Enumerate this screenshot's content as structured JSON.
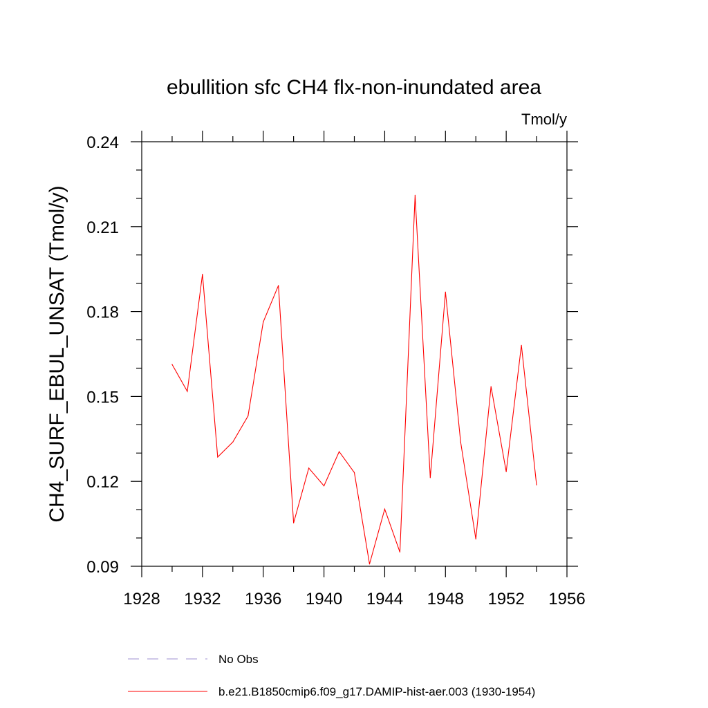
{
  "chart_data": {
    "type": "line",
    "title": "ebullition sfc CH4 flx-non-inundated area",
    "units": "Tmol/y",
    "ylabel": "CH4_SURF_EBUL_UNSAT  (Tmol/y)",
    "xlabel": "",
    "xlim": [
      1928,
      1956
    ],
    "ylim": [
      0.09,
      0.24
    ],
    "x_ticks": [
      "1928",
      "1932",
      "1936",
      "1940",
      "1944",
      "1948",
      "1952",
      "1956"
    ],
    "y_ticks": [
      "0.09",
      "0.12",
      "0.15",
      "0.18",
      "0.21",
      "0.24"
    ],
    "x_tick_values": [
      1928,
      1932,
      1936,
      1940,
      1944,
      1948,
      1952,
      1956
    ],
    "y_tick_values": [
      0.09,
      0.12,
      0.15,
      0.18,
      0.21,
      0.24
    ],
    "x_minor_step": 2,
    "y_minor_step": 0.01,
    "grid": false,
    "legend_position": "bottom",
    "series": [
      {
        "name": "b.e21.B1850cmip6.f09_g17.DAMIP-hist-aer.003 (1930-1954)",
        "color": "#ff0000",
        "dash": "solid",
        "x": [
          1930,
          1931,
          1932,
          1933,
          1934,
          1935,
          1936,
          1937,
          1938,
          1939,
          1940,
          1941,
          1942,
          1943,
          1944,
          1945,
          1946,
          1947,
          1948,
          1949,
          1950,
          1951,
          1952,
          1953,
          1954
        ],
        "y": [
          0.1613,
          0.1518,
          0.1932,
          0.1286,
          0.1339,
          0.1431,
          0.1763,
          0.1892,
          0.1053,
          0.1247,
          0.1184,
          0.1305,
          0.1231,
          0.0908,
          0.1102,
          0.095,
          0.2211,
          0.1213,
          0.1869,
          0.1339,
          0.0996,
          0.1535,
          0.1234,
          0.1681,
          0.1187
        ]
      }
    ],
    "legend": [
      {
        "label": "No Obs",
        "color": "#9c8fd0",
        "dash": "dashed"
      },
      {
        "label": "b.e21.B1850cmip6.f09_g17.DAMIP-hist-aer.003 (1930-1954)",
        "color": "#ff0000",
        "dash": "solid"
      }
    ]
  }
}
